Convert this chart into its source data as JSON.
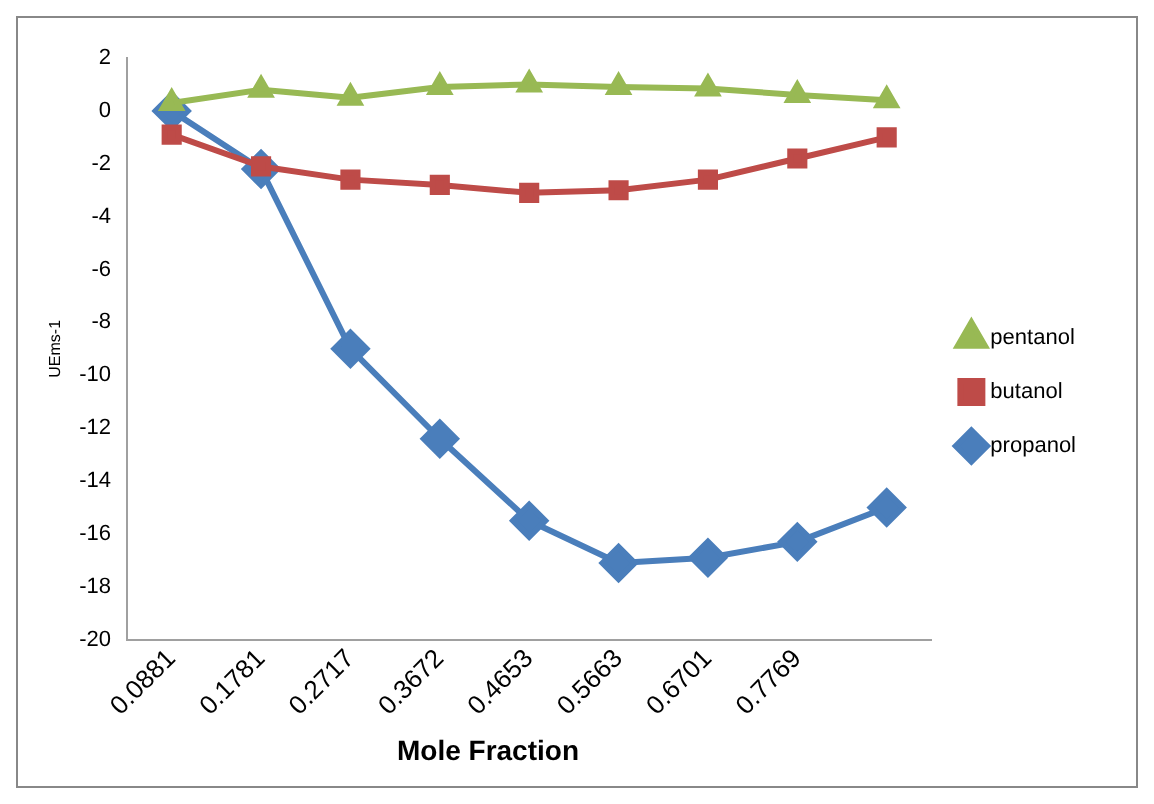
{
  "chart_data": {
    "type": "line",
    "xlabel": "Mole Fraction",
    "ylabel": "UEms-1",
    "categories": [
      "0.0881",
      "0.1781",
      "0.2717",
      "0.3672",
      "0.4653",
      "0.5663",
      "0.6701",
      "0.7769",
      null
    ],
    "series": [
      {
        "name": "propanol",
        "color": "#4a7ebb",
        "marker": "diamond",
        "values": [
          0,
          -2.2,
          -9.0,
          -12.4,
          -15.5,
          -17.1,
          -16.9,
          -16.3,
          -15.0
        ]
      },
      {
        "name": "butanol",
        "color": "#be4b48",
        "marker": "square",
        "values": [
          -0.9,
          -2.1,
          -2.6,
          -2.8,
          -3.1,
          -3.0,
          -2.6,
          -1.8,
          -1.0
        ]
      },
      {
        "name": "pentanol",
        "color": "#98b954",
        "marker": "triangle",
        "values": [
          0.3,
          0.8,
          0.5,
          0.9,
          1.0,
          0.9,
          0.85,
          0.6,
          0.4
        ]
      }
    ],
    "ylim": [
      -20,
      2
    ],
    "yticks": [
      -20,
      -18,
      -16,
      -14,
      -12,
      -10,
      -8,
      -6,
      -4,
      -2,
      0,
      2
    ],
    "grid": false,
    "legend": "right",
    "line_style": "solid"
  }
}
